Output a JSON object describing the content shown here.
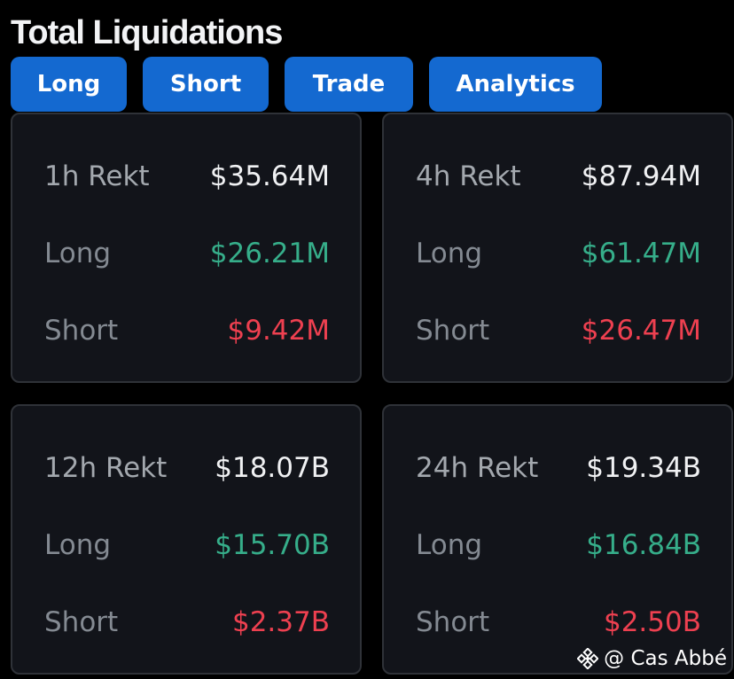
{
  "title": "Total Liquidations",
  "tabs": [
    {
      "label": "Long"
    },
    {
      "label": "Short"
    },
    {
      "label": "Trade"
    },
    {
      "label": "Analytics"
    }
  ],
  "cards": [
    {
      "period_label": "1h Rekt",
      "total": "$35.64M",
      "long_label": "Long",
      "long_value": "$26.21M",
      "short_label": "Short",
      "short_value": "$9.42M"
    },
    {
      "period_label": "4h Rekt",
      "total": "$87.94M",
      "long_label": "Long",
      "long_value": "$61.47M",
      "short_label": "Short",
      "short_value": "$26.47M"
    },
    {
      "period_label": "12h Rekt",
      "total": "$18.07B",
      "long_label": "Long",
      "long_value": "$15.70B",
      "short_label": "Short",
      "short_value": "$2.37B"
    },
    {
      "period_label": "24h Rekt",
      "total": "$19.34B",
      "long_label": "Long",
      "long_value": "$16.84B",
      "short_label": "Short",
      "short_value": "$2.50B"
    }
  ],
  "watermark": {
    "text": "@ Cas Abbé",
    "icon": "binance-logo-icon"
  },
  "colors": {
    "background": "#000000",
    "card": "#12141a",
    "card_border": "#2f3238",
    "tab": "#1469d0",
    "long": "#36ae8a",
    "short": "#ee4050",
    "label": "#848a92",
    "value": "#f0f1f3"
  }
}
